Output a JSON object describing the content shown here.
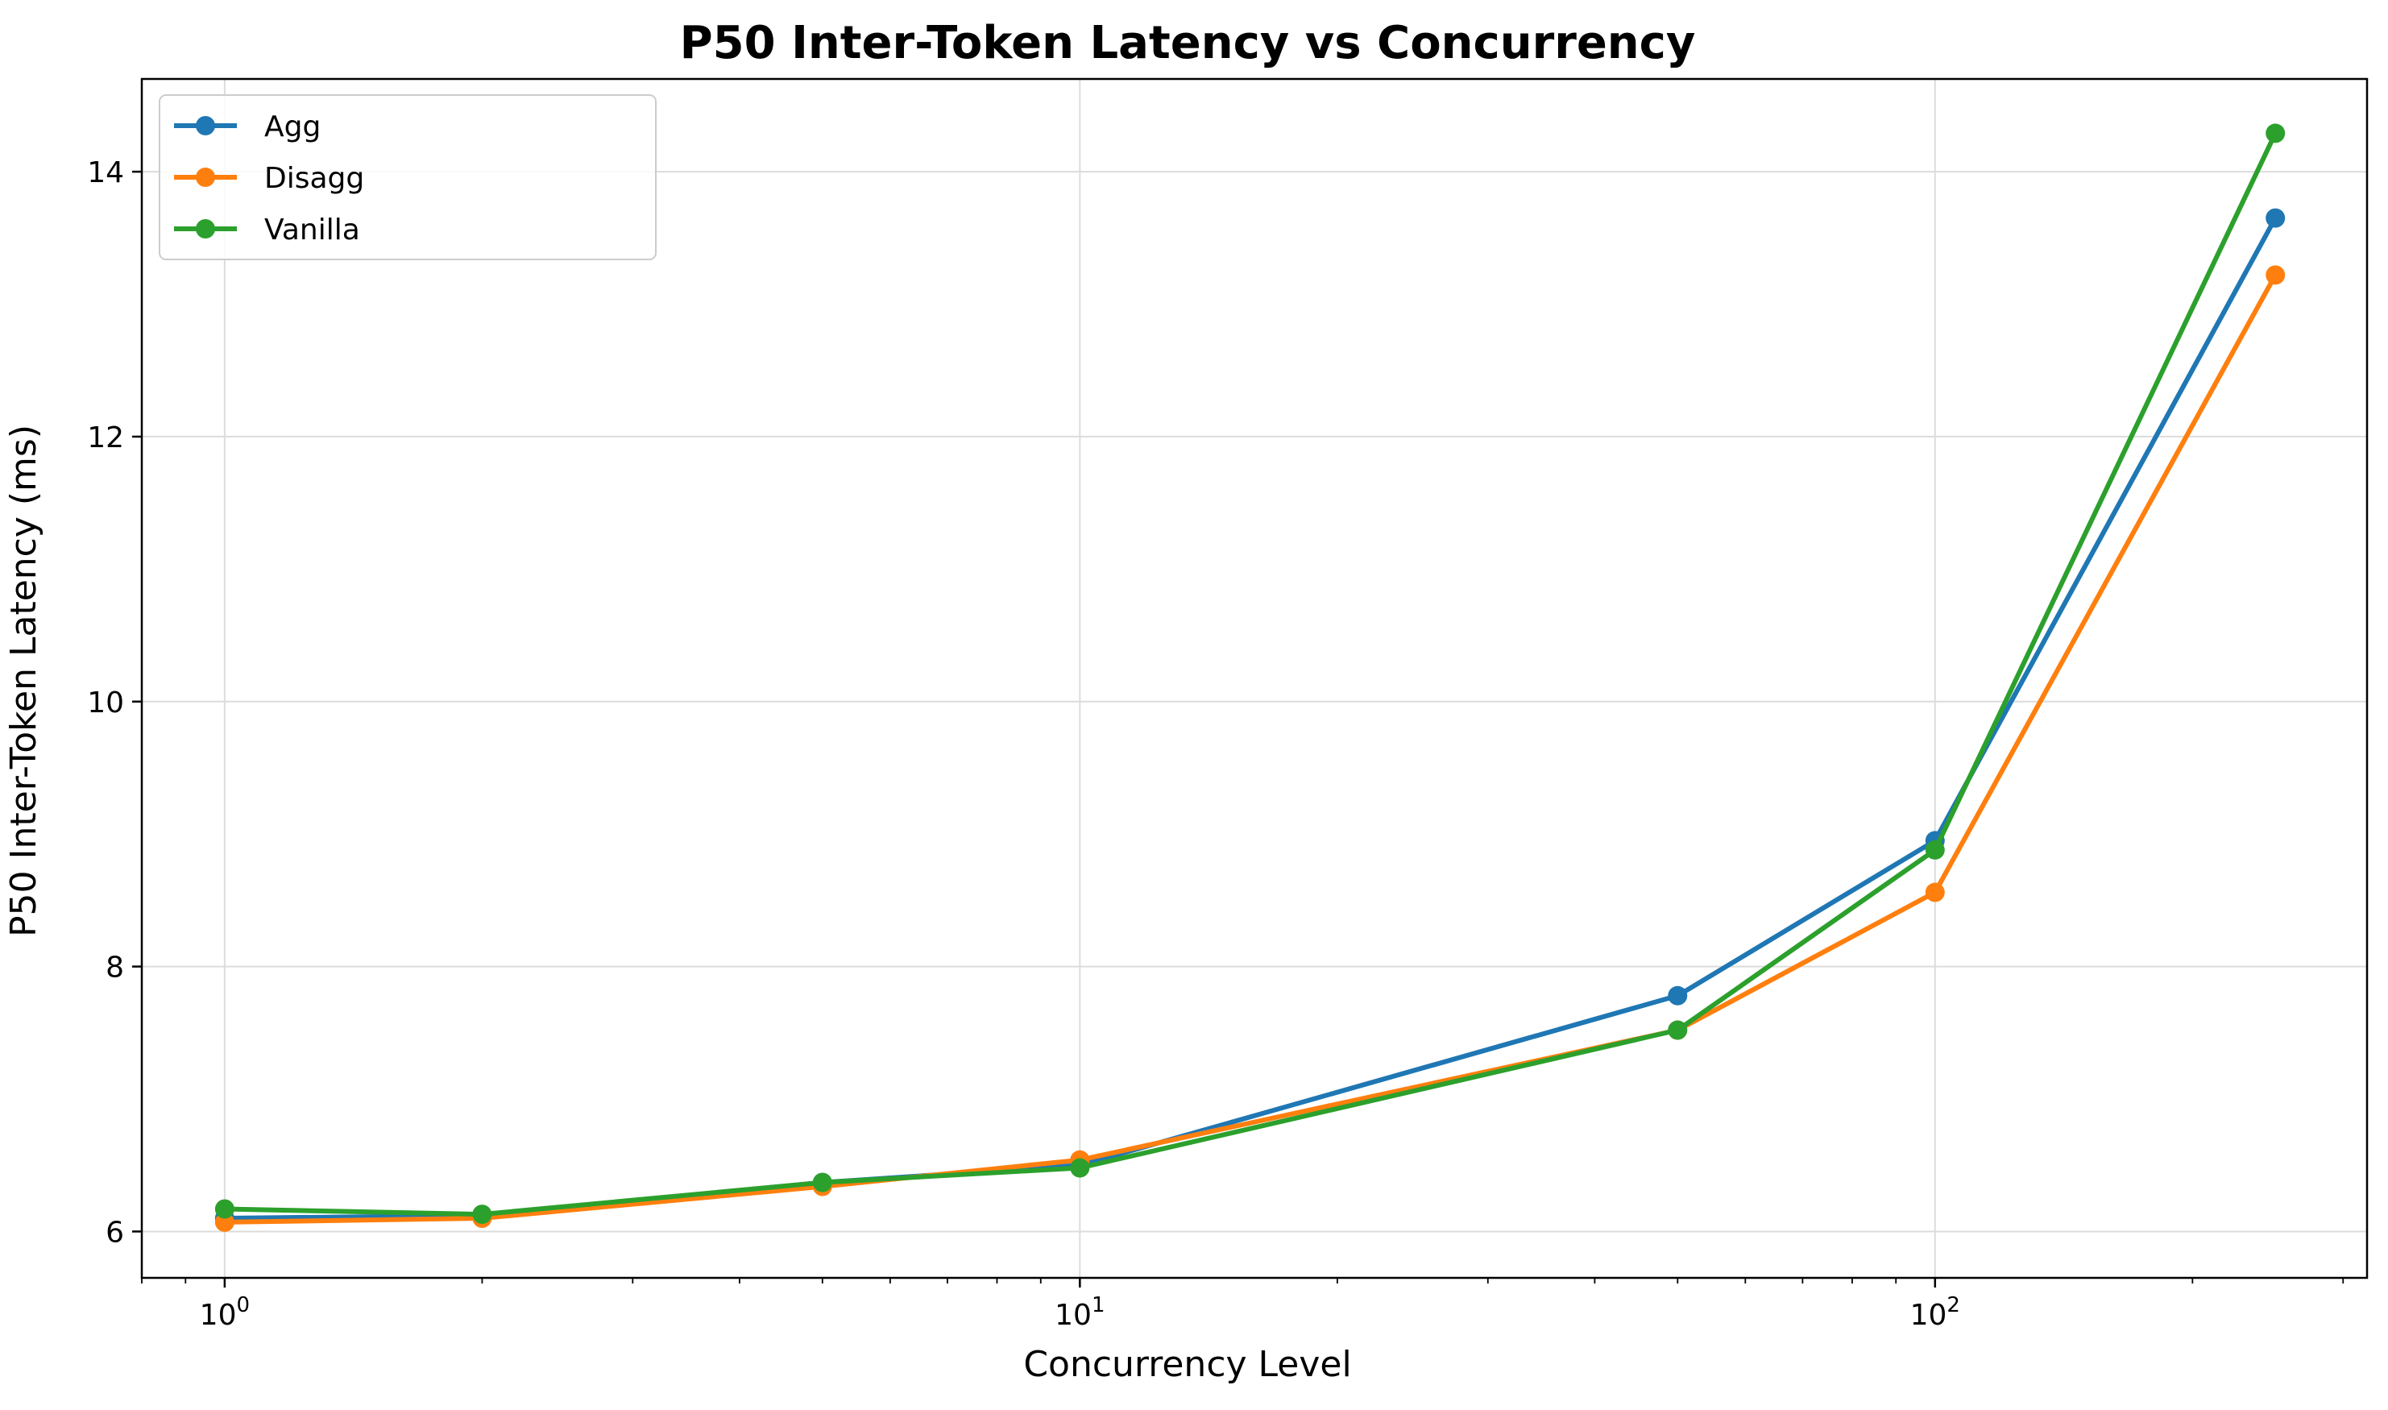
{
  "chart_data": {
    "type": "line",
    "title": "P50 Inter-Token Latency vs Concurrency",
    "xlabel": "Concurrency Level",
    "ylabel": "P50 Inter-Token Latency (ms)",
    "xscale": "log",
    "xlim": [
      0.8,
      320
    ],
    "ylim": [
      5.65,
      14.7
    ],
    "x": [
      1,
      2,
      5,
      10,
      50,
      100,
      250
    ],
    "x_ticks": [
      {
        "value": 1,
        "base": "10",
        "exp": "0"
      },
      {
        "value": 10,
        "base": "10",
        "exp": "1"
      },
      {
        "value": 100,
        "base": "10",
        "exp": "2"
      }
    ],
    "y_ticks": [
      6,
      8,
      10,
      12,
      14
    ],
    "grid": true,
    "legend_position": "top-left",
    "series": [
      {
        "name": "Agg",
        "color": "#1f77b4",
        "values": [
          6.1,
          6.12,
          6.37,
          6.5,
          7.78,
          8.95,
          13.65
        ]
      },
      {
        "name": "Disagg",
        "color": "#ff7f0e",
        "values": [
          6.07,
          6.1,
          6.34,
          6.54,
          7.52,
          8.56,
          13.22
        ]
      },
      {
        "name": "Vanilla",
        "color": "#2ca02c",
        "values": [
          6.17,
          6.13,
          6.37,
          6.48,
          7.52,
          8.88,
          14.29
        ]
      }
    ]
  }
}
